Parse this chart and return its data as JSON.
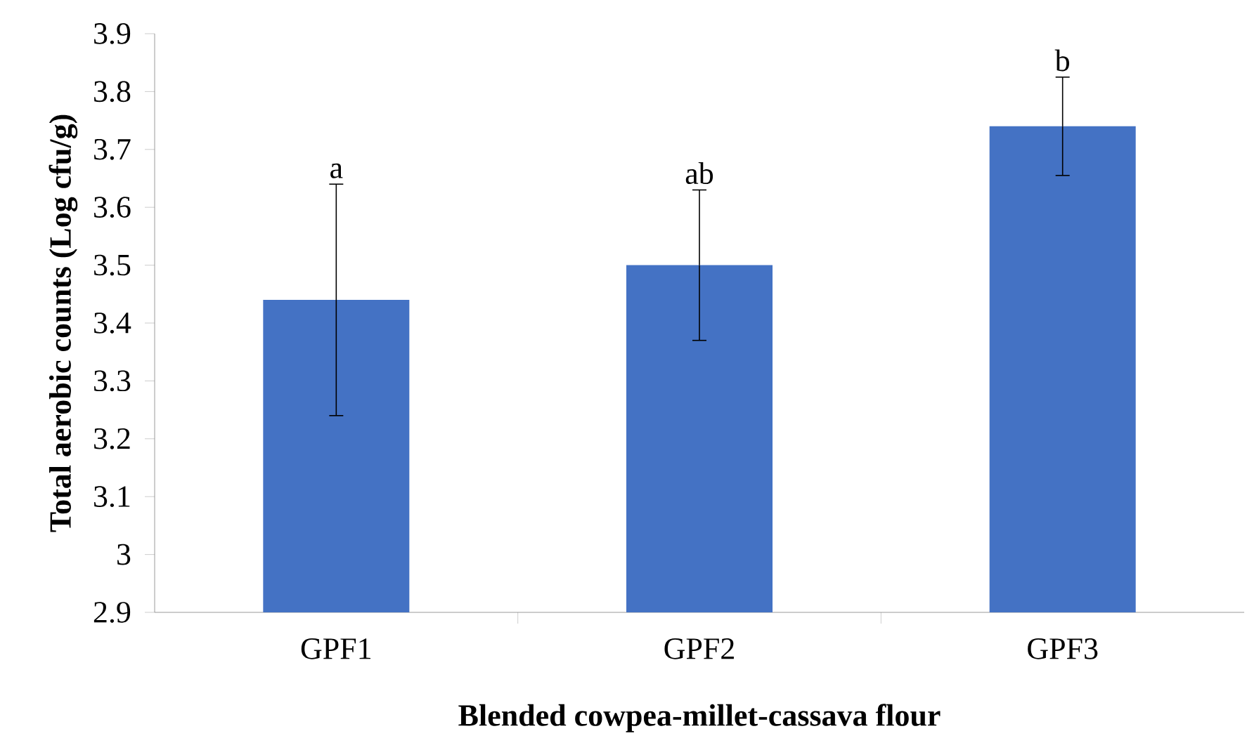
{
  "chart_data": {
    "type": "bar",
    "xlabel": "Blended cowpea-millet-cassava flour",
    "ylabel": "Total aerobic counts (Log cfu/g)",
    "categories": [
      "GPF1",
      "GPF2",
      "GPF3"
    ],
    "values": [
      3.44,
      3.5,
      3.74
    ],
    "errors": [
      0.2,
      0.13,
      0.085
    ],
    "color": "#4472c4",
    "ylim": [
      2.9,
      3.9
    ],
    "yticks": [
      {
        "value": 2.9,
        "label": "2.9"
      },
      {
        "value": 3.0,
        "label": "3"
      },
      {
        "value": 3.1,
        "label": "3.1"
      },
      {
        "value": 3.2,
        "label": "3.2"
      },
      {
        "value": 3.3,
        "label": "3.3"
      },
      {
        "value": 3.4,
        "label": "3.4"
      },
      {
        "value": 3.5,
        "label": "3.5"
      },
      {
        "value": 3.6,
        "label": "3.6"
      },
      {
        "value": 3.7,
        "label": "3.7"
      },
      {
        "value": 3.8,
        "label": "3.8"
      },
      {
        "value": 3.9,
        "label": "3.9"
      }
    ],
    "annotations": [
      {
        "text": "a",
        "x": "GPF1",
        "y": 3.64
      },
      {
        "text": "ab",
        "x": "GPF2",
        "y": 3.63
      },
      {
        "text": "b",
        "x": "GPF3",
        "y": 3.825
      }
    ],
    "grid": false
  }
}
